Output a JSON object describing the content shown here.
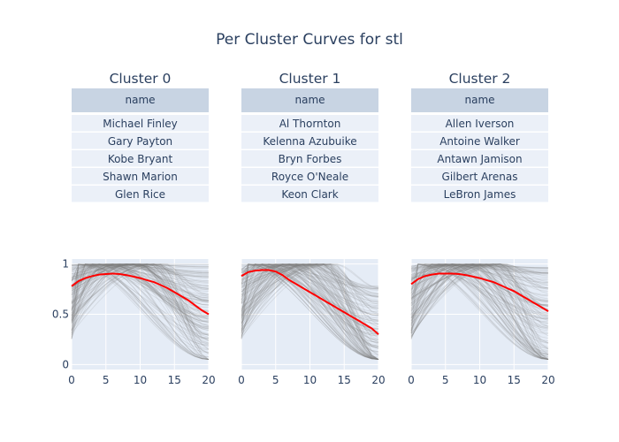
{
  "chart_data": {
    "type": "line",
    "title": "Per Cluster Curves for stl",
    "table_header": "name",
    "x_range": [
      0,
      20
    ],
    "y_range": [
      -0.05,
      1.05
    ],
    "x_ticks": [
      "0",
      "5",
      "10",
      "15",
      "20"
    ],
    "y_ticks": [
      "0",
      "0.5",
      "1"
    ],
    "colors": {
      "mean_curve": "#ff0000",
      "background_curves": "#808080",
      "plot_bg": "#e5ecf6",
      "table_header_bg": "#c8d4e3",
      "table_cell_bg": "#ebf0f8"
    },
    "clusters": [
      {
        "title": "Cluster 0",
        "names": [
          "Michael Finley",
          "Gary Payton",
          "Kobe Bryant",
          "Shawn Marion",
          "Glen Rice"
        ],
        "mean_curve": {
          "x": [
            0,
            1,
            2,
            3,
            4,
            5,
            6,
            7,
            8,
            9,
            10,
            11,
            12,
            13,
            14,
            15,
            16,
            17,
            18,
            19,
            20
          ],
          "y": [
            0.78,
            0.83,
            0.86,
            0.88,
            0.895,
            0.9,
            0.905,
            0.9,
            0.89,
            0.875,
            0.86,
            0.84,
            0.82,
            0.79,
            0.76,
            0.72,
            0.68,
            0.64,
            0.59,
            0.54,
            0.5
          ]
        }
      },
      {
        "title": "Cluster 1",
        "names": [
          "Al Thornton",
          "Kelenna Azubuike",
          "Bryn Forbes",
          "Royce O'Neale",
          "Keon Clark"
        ],
        "mean_curve": {
          "x": [
            0,
            1,
            2,
            3,
            4,
            5,
            6,
            7,
            8,
            9,
            10,
            11,
            12,
            13,
            14,
            15,
            16,
            17,
            18,
            19,
            20
          ],
          "y": [
            0.88,
            0.92,
            0.935,
            0.94,
            0.94,
            0.925,
            0.89,
            0.84,
            0.8,
            0.76,
            0.72,
            0.68,
            0.64,
            0.6,
            0.56,
            0.52,
            0.48,
            0.44,
            0.4,
            0.36,
            0.3
          ]
        }
      },
      {
        "title": "Cluster 2",
        "names": [
          "Allen Iverson",
          "Antoine Walker",
          "Antawn Jamison",
          "Gilbert Arenas",
          "LeBron James"
        ],
        "mean_curve": {
          "x": [
            0,
            1,
            2,
            3,
            4,
            5,
            6,
            7,
            8,
            9,
            10,
            11,
            12,
            13,
            14,
            15,
            16,
            17,
            18,
            19,
            20
          ],
          "y": [
            0.8,
            0.85,
            0.88,
            0.895,
            0.905,
            0.905,
            0.905,
            0.9,
            0.89,
            0.875,
            0.86,
            0.84,
            0.82,
            0.79,
            0.76,
            0.73,
            0.69,
            0.65,
            0.61,
            0.57,
            0.53
          ]
        }
      }
    ]
  }
}
